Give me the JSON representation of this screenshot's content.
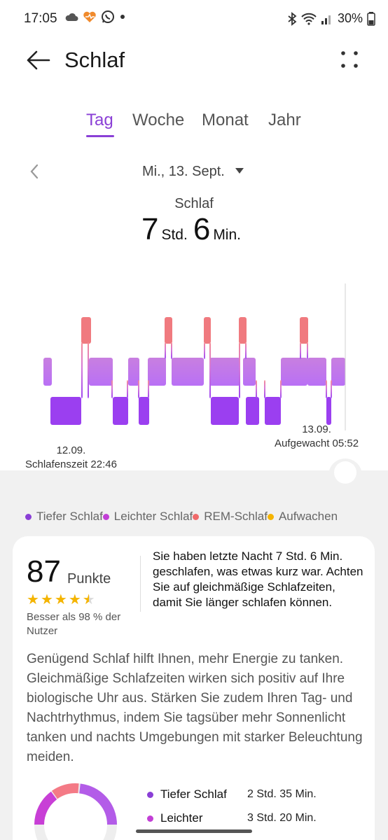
{
  "status_bar": {
    "time": "17:05",
    "battery": "30%",
    "icons": [
      "cloud-icon",
      "heart-app-icon",
      "whatsapp-icon",
      "dot-icon",
      "bluetooth-icon",
      "wifi-icon",
      "signal-icon",
      "battery-icon"
    ]
  },
  "app_bar": {
    "title": "Schlaf"
  },
  "tabs": [
    {
      "label": "Tag",
      "active": true
    },
    {
      "label": "Woche",
      "active": false
    },
    {
      "label": "Monat",
      "active": false
    },
    {
      "label": "Jahr",
      "active": false
    }
  ],
  "date": {
    "label": "Mi., 13. Sept."
  },
  "summary": {
    "label": "Schlaf",
    "hours": "7",
    "hours_unit": "Std.",
    "minutes": "6",
    "minutes_unit": "Min."
  },
  "chart": {
    "start_date": "12.09.",
    "start_label": "Schlafenszeit 22:46",
    "end_date": "13.09.",
    "end_label": "Aufgewacht 05:52",
    "colors": {
      "deep": "#9b3ff0",
      "light": "#c77ce8",
      "rem": "#f07a7f",
      "awake": "#f5c12e"
    }
  },
  "legend": [
    {
      "label": "Tiefer Schlaf",
      "color": "#8a3fd6"
    },
    {
      "label": "Leichter Schlaf",
      "color": "#c23fd6"
    },
    {
      "label": "REM-Schlaf",
      "color": "#f06a6a"
    },
    {
      "label": "Aufwachen",
      "color": "#f5b400"
    }
  ],
  "score_card": {
    "score": "87",
    "score_unit": "Punkte",
    "rating": 4.5,
    "better_than": "Besser als 98 % der Nutzer",
    "advice": "Sie haben letzte Nacht 7 Std. 6 Min. geschlafen, was etwas kurz war. Achten Sie auf gleichmäßige Schlafzeiten, damit Sie länger schlafen können.",
    "body": "Genügend Schlaf hilft Ihnen, mehr Energie zu tanken. Gleichmäßige Schlafzeiten wirken sich positiv auf Ihre biologische Uhr aus. Stärken Sie zudem Ihren Tag- und Nachtrhythmus, indem Sie tagsüber mehr Sonnenlicht tanken und nachts Umgebungen mit starker Beleuchtung meiden."
  },
  "stats": [
    {
      "label": "Tiefer Schlaf",
      "value": "2 Std. 35 Min.",
      "color": "#8a3fd6"
    },
    {
      "label": "Leichter",
      "value": "3 Std. 20 Min.",
      "color": "#c23fd6"
    }
  ]
}
